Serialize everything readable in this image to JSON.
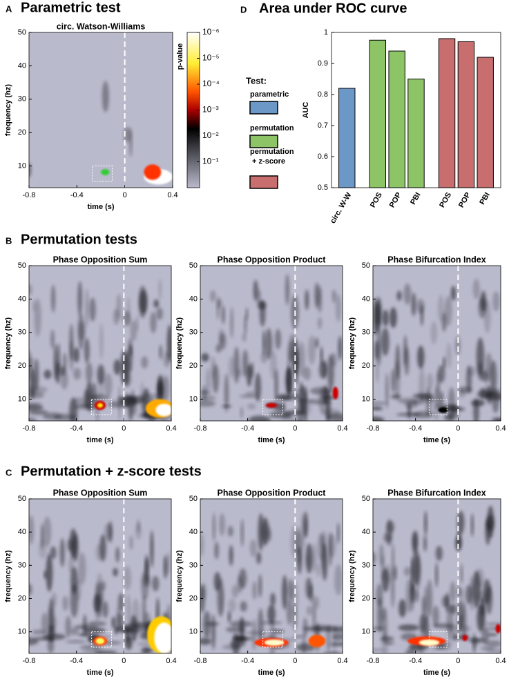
{
  "figure": {
    "panels": [
      {
        "letter": "A",
        "title": "Parametric test"
      },
      {
        "letter": "B",
        "title": "Permutation tests"
      },
      {
        "letter": "C",
        "title": "Permutation + z-score tests"
      },
      {
        "letter": "D",
        "title": "Area under ROC curve"
      }
    ]
  },
  "chart_data": [
    {
      "type": "heatmap",
      "title": "circ. Watson-Williams",
      "xlabel": "time (s)",
      "ylabel": "frequency (hz)",
      "xlim": [
        -0.8,
        0.4
      ],
      "xticks": [
        -0.8,
        -0.4,
        0,
        0.4
      ],
      "ylim": [
        3.5,
        50
      ],
      "yticks": [
        10,
        20,
        30,
        40,
        50
      ],
      "vline": 0,
      "colorbar": {
        "label": "p-value",
        "log": true,
        "clim": [
          1e-06,
          1
        ],
        "ticks": [
          {
            "value": 1e-06,
            "label": "10⁻⁶"
          },
          {
            "value": 1e-05,
            "label": "10⁻⁵"
          },
          {
            "value": 0.0001,
            "label": "10⁻⁴"
          },
          {
            "value": 0.001,
            "label": "10⁻³"
          },
          {
            "value": 0.01,
            "label": "10⁻²"
          },
          {
            "value": 0.1,
            "label": "10⁻¹"
          }
        ]
      }
    },
    {
      "type": "heatmap",
      "title": "Phase Opposition Sum",
      "xlabel": "time (s)",
      "ylabel": "frequency (hz)",
      "xlim": [
        -0.8,
        0.4
      ],
      "xticks": [
        -0.8,
        -0.4,
        0,
        0.4
      ],
      "ylim": [
        3.5,
        50
      ],
      "yticks": [
        10,
        20,
        30,
        40,
        50
      ],
      "vline": 0
    },
    {
      "type": "heatmap",
      "title": "Phase Opposition Product",
      "xlabel": "time (s)",
      "ylabel": "frequency (hz)",
      "xlim": [
        -0.8,
        0.4
      ],
      "xticks": [
        -0.8,
        -0.4,
        0,
        0.4
      ],
      "ylim": [
        3.5,
        50
      ],
      "yticks": [
        10,
        20,
        30,
        40,
        50
      ],
      "vline": 0
    },
    {
      "type": "heatmap",
      "title": "Phase Bifurcation Index",
      "xlabel": "time (s)",
      "ylabel": "frequency (hz)",
      "xlim": [
        -0.8,
        0.4
      ],
      "xticks": [
        -0.8,
        -0.4,
        0,
        0.4
      ],
      "ylim": [
        3.5,
        50
      ],
      "yticks": [
        10,
        20,
        30,
        40,
        50
      ],
      "vline": 0
    },
    {
      "type": "heatmap",
      "title": "Phase Opposition Sum",
      "xlabel": "time (s)",
      "ylabel": "frequency (hz)",
      "xlim": [
        -0.8,
        0.4
      ],
      "xticks": [
        -0.8,
        -0.4,
        0,
        0.4
      ],
      "ylim": [
        3.5,
        50
      ],
      "yticks": [
        10,
        20,
        30,
        40,
        50
      ],
      "vline": 0
    },
    {
      "type": "heatmap",
      "title": "Phase Opposition Product",
      "xlabel": "time (s)",
      "ylabel": "frequency (hz)",
      "xlim": [
        -0.8,
        0.4
      ],
      "xticks": [
        -0.8,
        -0.4,
        0,
        0.4
      ],
      "ylim": [
        3.5,
        50
      ],
      "yticks": [
        10,
        20,
        30,
        40,
        50
      ],
      "vline": 0
    },
    {
      "type": "heatmap",
      "title": "Phase Bifurcation Index",
      "xlabel": "time (s)",
      "ylabel": "frequency (hz)",
      "xlim": [
        -0.8,
        0.4
      ],
      "xticks": [
        -0.8,
        -0.4,
        0,
        0.4
      ],
      "ylim": [
        3.5,
        50
      ],
      "yticks": [
        10,
        20,
        30,
        40,
        50
      ],
      "vline": 0
    },
    {
      "type": "bar",
      "ylabel": "AUC",
      "ylim": [
        0.5,
        1
      ],
      "yticks": [
        0.5,
        0.6,
        0.7,
        0.8,
        0.9,
        1
      ],
      "legend_title": "Test:",
      "series": [
        {
          "name": "parametric",
          "color": "#6b98c6",
          "categories": [
            "circ. W-W"
          ],
          "values": [
            0.82
          ]
        },
        {
          "name": "permutation",
          "color": "#8dc466",
          "categories": [
            "POS",
            "POP",
            "PBI"
          ],
          "values": [
            0.975,
            0.94,
            0.85
          ]
        },
        {
          "name": "permutation + z-score",
          "color": "#c86e6e",
          "categories": [
            "POS",
            "POP",
            "PBI"
          ],
          "values": [
            0.98,
            0.97,
            0.92
          ]
        }
      ]
    }
  ]
}
